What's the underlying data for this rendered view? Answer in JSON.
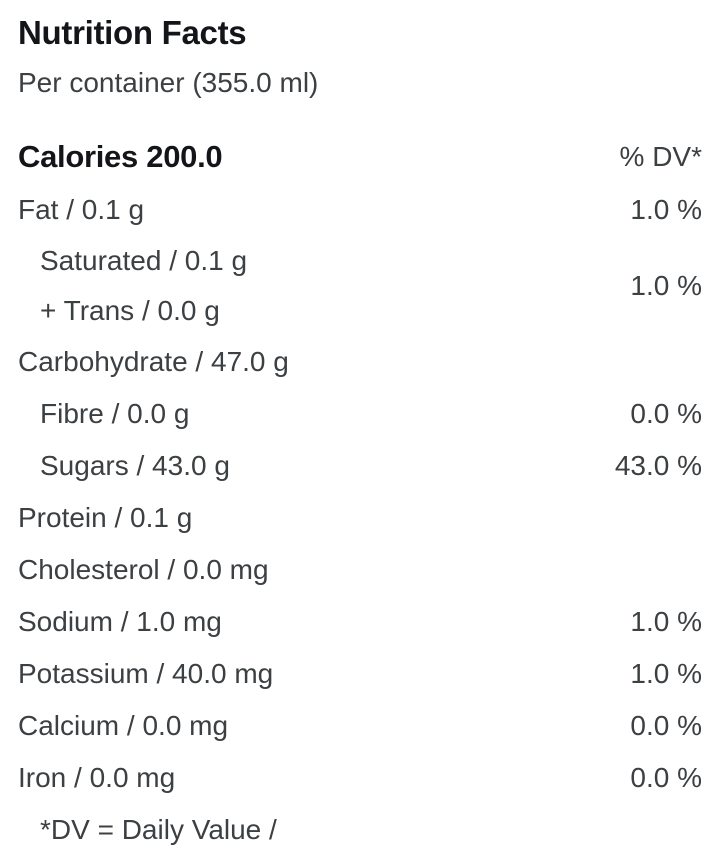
{
  "header": {
    "title": "Nutrition Facts",
    "serving": "Per container (355.0 ml)"
  },
  "calories": {
    "label": "Calories 200.0",
    "dv_header": "% DV*"
  },
  "rows": [
    {
      "label": "Fat / 0.1 g",
      "dv": "1.0 %"
    },
    {
      "line1": "Saturated / 0.1 g",
      "line2": "+ Trans / 0.0 g",
      "dv": "1.0 %"
    },
    {
      "label": "Carbohydrate / 47.0 g",
      "dv": ""
    },
    {
      "label": "Fibre / 0.0 g",
      "dv": "0.0 %"
    },
    {
      "label": "Sugars / 43.0 g",
      "dv": "43.0 %"
    },
    {
      "label": "Protein / 0.1 g",
      "dv": ""
    },
    {
      "label": "Cholesterol / 0.0 mg",
      "dv": ""
    },
    {
      "label": "Sodium / 1.0 mg",
      "dv": "1.0 %"
    },
    {
      "label": "Potassium / 40.0 mg",
      "dv": "1.0 %"
    },
    {
      "label": "Calcium / 0.0 mg",
      "dv": "0.0 %"
    },
    {
      "label": "Iron / 0.0 mg",
      "dv": "0.0 %"
    }
  ],
  "footnote": "*DV = Daily Value /"
}
